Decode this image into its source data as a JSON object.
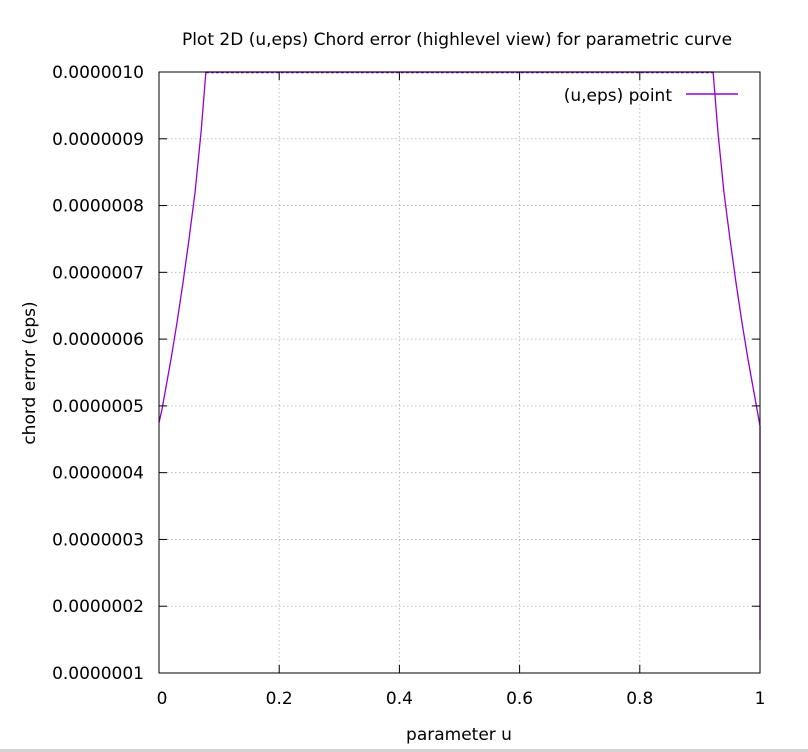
{
  "chart_data": {
    "type": "line",
    "title": "Plot 2D (u,eps) Chord error (highlevel view) for parametric curve",
    "xlabel": "parameter u",
    "ylabel": "chord error (eps)",
    "xlim": [
      0,
      1
    ],
    "ylim": [
      1e-07,
      1e-06
    ],
    "x_ticks": [
      0,
      0.2,
      0.4,
      0.6,
      0.8,
      1
    ],
    "x_tick_labels": [
      "0",
      "0.2",
      "0.4",
      "0.6",
      "0.8",
      "1"
    ],
    "y_ticks": [
      1e-07,
      2e-07,
      3e-07,
      4e-07,
      5e-07,
      6e-07,
      7e-07,
      8e-07,
      9e-07,
      1e-06
    ],
    "y_tick_labels": [
      "0.0000001",
      "0.0000002",
      "0.0000003",
      "0.0000004",
      "0.0000005",
      "0.0000006",
      "0.0000007",
      "0.0000008",
      "0.0000009",
      "0.0000010"
    ],
    "grid": true,
    "legend_position": "top-right",
    "colors": {
      "series": "#9400d3",
      "grid": "#b0b0b0",
      "axes": "#000000"
    },
    "series": [
      {
        "name": "(u,eps) point",
        "x": [
          0,
          0.005,
          0.01,
          0.02,
          0.03,
          0.04,
          0.05,
          0.06,
          0.07,
          0.078,
          0.1,
          0.2,
          0.3,
          0.4,
          0.5,
          0.6,
          0.7,
          0.8,
          0.9,
          0.922,
          0.93,
          0.94,
          0.95,
          0.96,
          0.97,
          0.98,
          0.99,
          0.995,
          0.998,
          1.0,
          1.0
        ],
        "y": [
          4.75e-07,
          4.95e-07,
          5.2e-07,
          5.7e-07,
          6.25e-07,
          6.85e-07,
          7.5e-07,
          8.2e-07,
          9.1e-07,
          1e-06,
          1e-06,
          1e-06,
          1e-06,
          1e-06,
          1e-06,
          1e-06,
          1e-06,
          1e-06,
          1e-06,
          1e-06,
          9.1e-07,
          8.2e-07,
          7.5e-07,
          6.85e-07,
          6.25e-07,
          5.7e-07,
          5.2e-07,
          4.95e-07,
          4.8e-07,
          4.7e-07,
          1.5e-07
        ]
      }
    ]
  }
}
